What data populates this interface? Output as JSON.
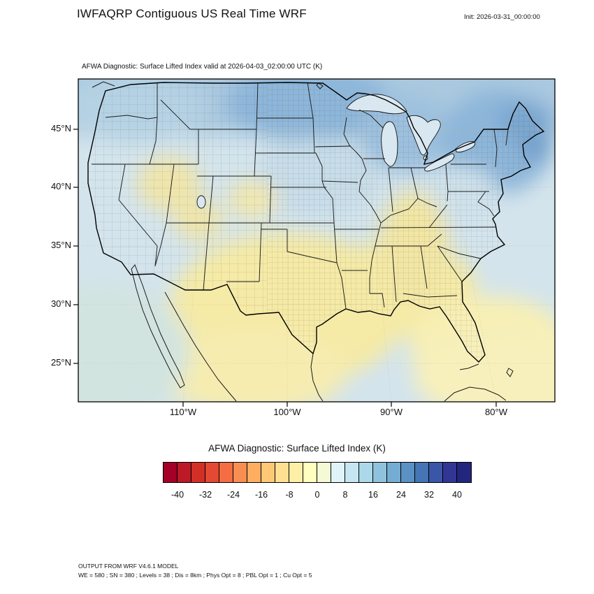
{
  "header": {
    "title": "IWFAQRP Contiguous US Real Time WRF",
    "init_label": "Init: 2026-03-31_00:00:00"
  },
  "map": {
    "subtitle": "AFWA Diagnostic: Surface Lifted Index valid at 2026-04-03_02:00:00 UTC   (K)",
    "lat_ticks": [
      "45°N",
      "40°N",
      "35°N",
      "30°N",
      "25°N"
    ],
    "lon_ticks": [
      "110°W",
      "100°W",
      "90°W",
      "80°W"
    ]
  },
  "colorbar": {
    "title": "AFWA Diagnostic: Surface Lifted Index  (K)",
    "ticks": [
      "-40",
      "-32",
      "-24",
      "-16",
      "-8",
      "0",
      "8",
      "16",
      "24",
      "32",
      "40"
    ],
    "colors": [
      "#a50026",
      "#bb1a26",
      "#d32f27",
      "#e34933",
      "#f46d43",
      "#f98e52",
      "#fdae61",
      "#fec877",
      "#fee090",
      "#feefa8",
      "#ffffbf",
      "#f3fad4",
      "#e0f3f8",
      "#c5e6f2",
      "#abd9e9",
      "#8fc3dd",
      "#74add1",
      "#5b91c3",
      "#4575b4",
      "#3a57a7",
      "#313695",
      "#23267d"
    ]
  },
  "footer": {
    "line1": "OUTPUT FROM WRF V4.6.1 MODEL",
    "line2": "WE = 580 ; SN = 380 ; Levels = 38 ; Dis = 8km ; Phys Opt = 8 ; PBL Opt = 1 ; Cu Opt = 5"
  },
  "chart_data": {
    "type": "heatmap",
    "title": "AFWA Diagnostic: Surface Lifted Index (K)",
    "subtitle_valid_time": "2026-04-03_02:00:00 UTC",
    "init_time": "2026-03-31_00:00:00",
    "units": "K",
    "region": "Contiguous US (WRF real-time domain, Lambert conformal)",
    "x_axis": {
      "label": "longitude",
      "ticks": [
        "110°W",
        "100°W",
        "90°W",
        "80°W"
      ]
    },
    "y_axis": {
      "label": "latitude",
      "ticks": [
        "45°N",
        "40°N",
        "35°N",
        "30°N",
        "25°N"
      ]
    },
    "colorbar_levels": [
      -40,
      -32,
      -24,
      -16,
      -8,
      0,
      8,
      16,
      24,
      32,
      40
    ],
    "colorbar_cell_width_K": 4,
    "legend_position": "bottom center",
    "value_summary": [
      {
        "region": "Northern Plains (Dakotas/Minnesota) and Canada border",
        "lifted_index_K": "12 to 20 (stable, medium blue)"
      },
      {
        "region": "Northeast US / New England",
        "lifted_index_K": "12 to 24 (stable, medium-dark blue)"
      },
      {
        "region": "Great Lakes / Upper Midwest",
        "lifted_index_K": "8 to 16 (light-medium blue)"
      },
      {
        "region": "Central Plains (Nebraska/Kansas)",
        "lifted_index_K": "4 to 10 (pale blue)"
      },
      {
        "region": "Texas, Gulf Coast, Lower Mississippi Valley",
        "lifted_index_K": "-4 to 2 (pale yellow)"
      },
      {
        "region": "Ohio Valley / Kentucky / Tennessee yellow band",
        "lifted_index_K": "-2 to 2 (pale yellow)"
      },
      {
        "region": "Great Basin and Colorado patches",
        "lifted_index_K": "-2 to 4 (pale yellow)"
      },
      {
        "region": "Southeast / Florida and adjacent Atlantic-Gulf waters",
        "lifted_index_K": "-4 to 4 (pale yellow)"
      },
      {
        "region": "Pacific Northwest and West Coast",
        "lifted_index_K": "4 to 10 (pale blue-green)"
      }
    ]
  }
}
